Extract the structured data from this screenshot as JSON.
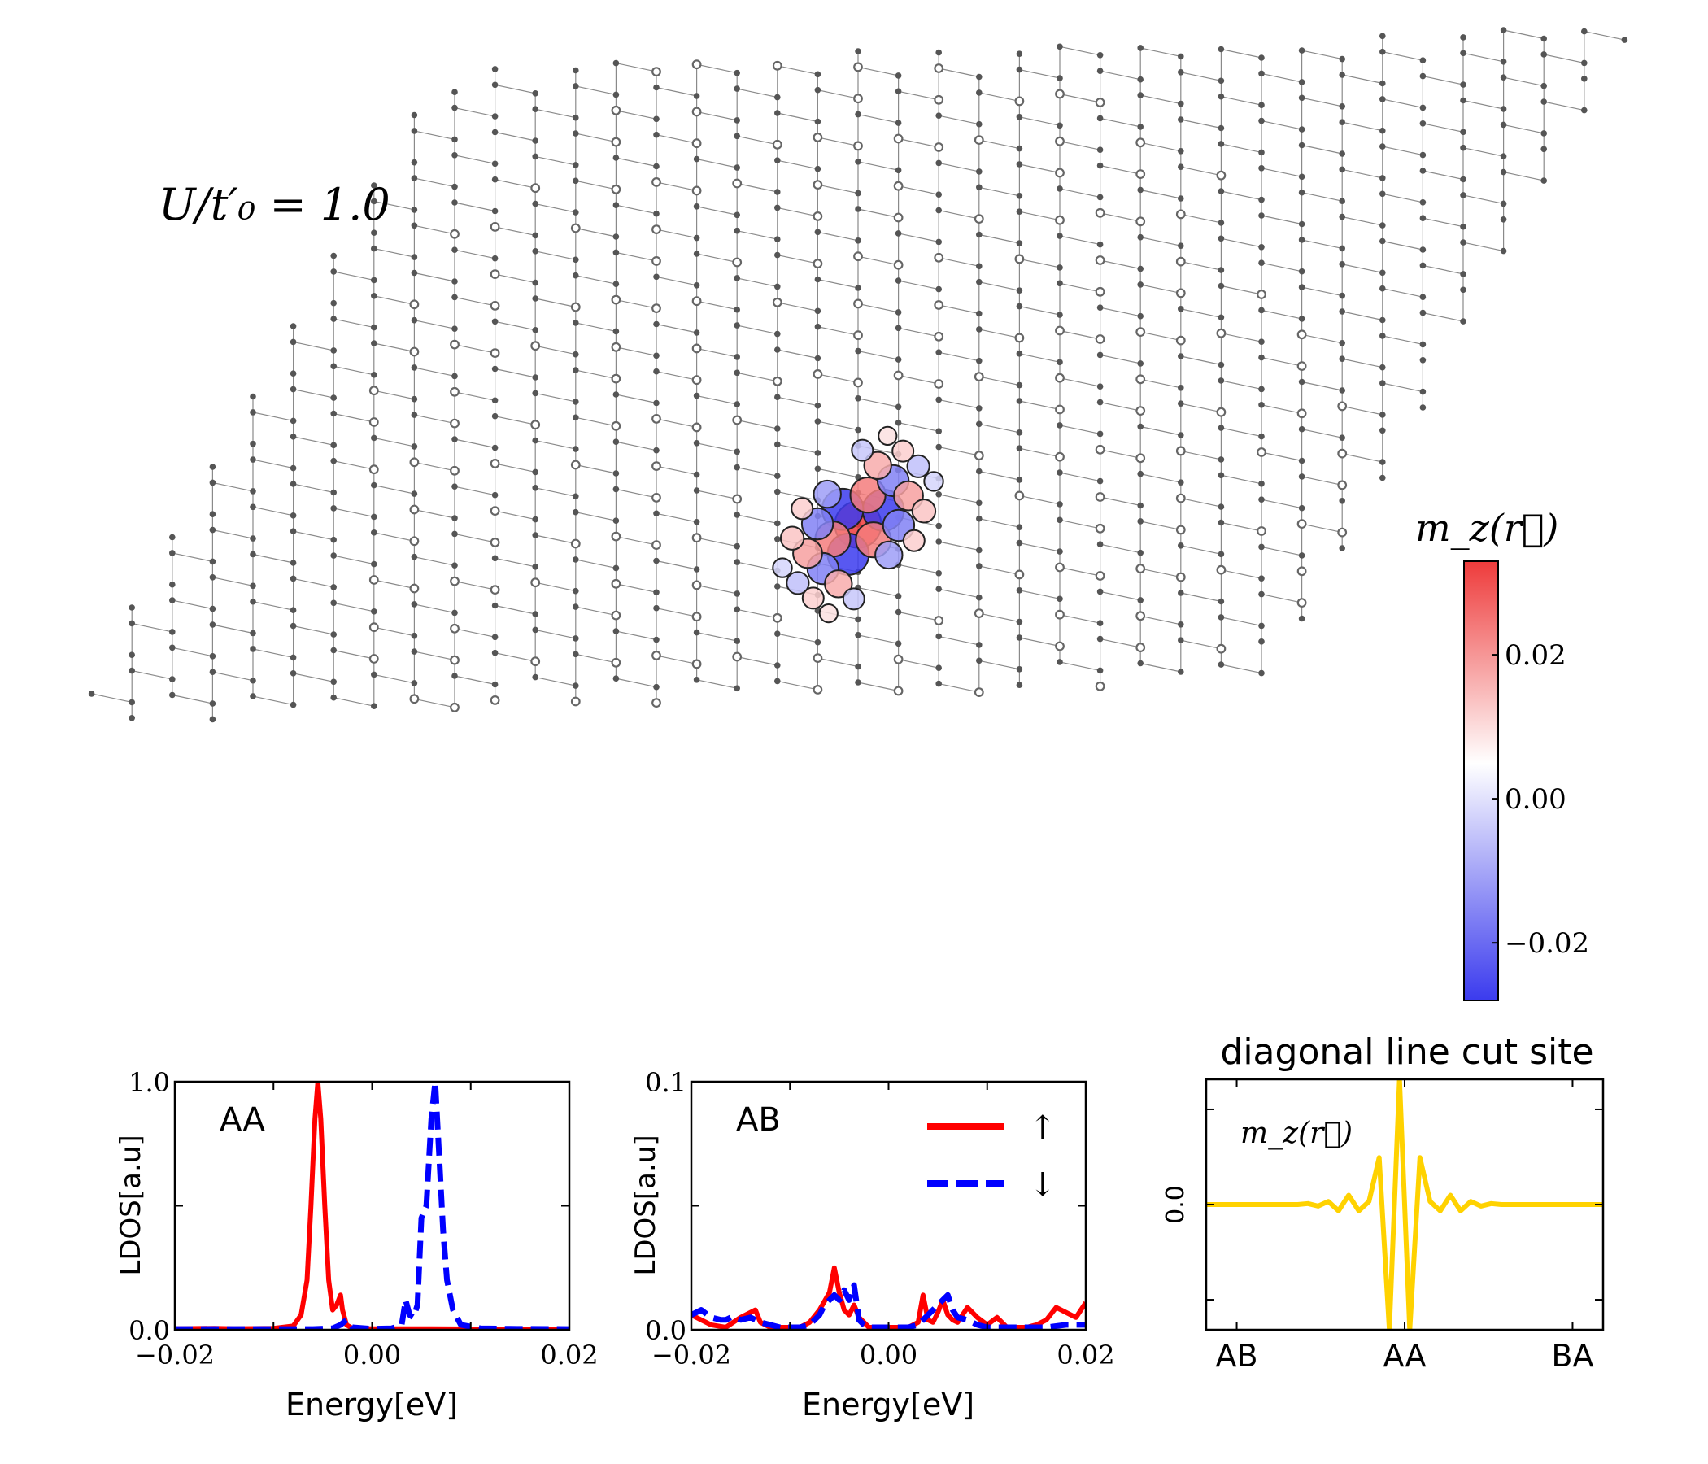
{
  "figure": {
    "param_label": "U/t′₀ = 1.0",
    "colormap": {
      "title": "m_z(r⃗)",
      "ticks": [
        "0.02",
        "0.00",
        "−0.02"
      ],
      "tick_values": [
        0.02,
        0.0,
        -0.02
      ],
      "vmin": -0.028,
      "vmax": 0.033,
      "color_pos": "#ee3b3b",
      "color_neg": "#3b3bee"
    },
    "lattice": {
      "bond_color": "#8a8a8a",
      "site_color": "#555555",
      "magnetic_sites": [
        {
          "i": 0,
          "j": 0,
          "m": 0.033
        },
        {
          "i": 1,
          "j": 0,
          "m": -0.028
        },
        {
          "i": -1,
          "j": 1,
          "m": -0.028
        },
        {
          "i": 0,
          "j": -1,
          "m": -0.028
        },
        {
          "i": -1,
          "j": 0,
          "m": 0.022
        },
        {
          "i": 1,
          "j": -1,
          "m": 0.022
        },
        {
          "i": 0,
          "j": 1,
          "m": 0.022
        },
        {
          "i": 2,
          "j": -1,
          "m": -0.018
        },
        {
          "i": -2,
          "j": 1,
          "m": -0.018
        },
        {
          "i": 1,
          "j": 1,
          "m": -0.018
        },
        {
          "i": -1,
          "j": -1,
          "m": -0.018
        },
        {
          "i": 2,
          "j": 0,
          "m": 0.016
        },
        {
          "i": -2,
          "j": 0,
          "m": 0.016
        },
        {
          "i": 0,
          "j": 2,
          "m": 0.014
        },
        {
          "i": 0,
          "j": -2,
          "m": 0.014
        },
        {
          "i": 2,
          "j": -2,
          "m": -0.014
        },
        {
          "i": -2,
          "j": 2,
          "m": -0.014
        },
        {
          "i": 3,
          "j": -1,
          "m": 0.01
        },
        {
          "i": -3,
          "j": 1,
          "m": 0.01
        },
        {
          "i": 1,
          "j": 2,
          "m": 0.008
        },
        {
          "i": -1,
          "j": -2,
          "m": 0.008
        },
        {
          "i": 2,
          "j": 1,
          "m": -0.009
        },
        {
          "i": -2,
          "j": -1,
          "m": -0.009
        },
        {
          "i": 3,
          "j": -2,
          "m": 0.008
        },
        {
          "i": -3,
          "j": 2,
          "m": 0.008
        },
        {
          "i": 1,
          "j": -3,
          "m": -0.008
        },
        {
          "i": -1,
          "j": 3,
          "m": -0.008
        },
        {
          "i": 3,
          "j": 0,
          "m": -0.006
        },
        {
          "i": -3,
          "j": 0,
          "m": -0.006
        },
        {
          "i": 0,
          "j": 3,
          "m": 0.005
        },
        {
          "i": 0,
          "j": -3,
          "m": 0.005
        }
      ]
    }
  },
  "chart_data": [
    {
      "type": "line",
      "panel": "AA",
      "annotation": "AA",
      "xlabel": "Energy[eV]",
      "ylabel": "LDOS[a.u]",
      "xlim": [
        -0.02,
        0.02
      ],
      "ylim": [
        0.0,
        1.0
      ],
      "xticks": [
        -0.02,
        0.0,
        0.02
      ],
      "xtick_labels": [
        "−0.02",
        "0.00",
        "0.02"
      ],
      "yticks": [
        0.0,
        1.0
      ],
      "ytick_labels": [
        "0.0",
        "1.0"
      ],
      "series": [
        {
          "name": "↑",
          "color": "#ff0000",
          "dash": "solid",
          "x": [
            -0.02,
            -0.016,
            -0.014,
            -0.012,
            -0.01,
            -0.008,
            -0.0072,
            -0.0066,
            -0.0062,
            -0.0058,
            -0.0055,
            -0.0052,
            -0.0048,
            -0.0044,
            -0.004,
            -0.0036,
            -0.0032,
            -0.003,
            -0.0026,
            -0.002,
            0.0,
            0.006,
            0.012,
            0.02
          ],
          "y": [
            0.004,
            0.006,
            0.004,
            0.005,
            0.006,
            0.015,
            0.06,
            0.2,
            0.5,
            0.85,
            1.0,
            0.85,
            0.5,
            0.2,
            0.08,
            0.1,
            0.14,
            0.08,
            0.02,
            0.006,
            0.004,
            0.004,
            0.003,
            0.003
          ]
        },
        {
          "name": "↓",
          "color": "#0000ff",
          "dash": "dashed",
          "x": [
            -0.02,
            -0.006,
            -0.004,
            -0.0032,
            -0.0026,
            -0.002,
            0.0,
            0.002,
            0.003,
            0.0034,
            0.0038,
            0.0042,
            0.0046,
            0.005,
            0.0055,
            0.006,
            0.0064,
            0.0068,
            0.0072,
            0.0076,
            0.0082,
            0.009,
            0.011,
            0.014,
            0.02
          ],
          "y": [
            0.003,
            0.003,
            0.006,
            0.02,
            0.04,
            0.01,
            0.004,
            0.006,
            0.02,
            0.12,
            0.06,
            0.05,
            0.1,
            0.45,
            0.5,
            0.85,
            1.0,
            0.7,
            0.4,
            0.2,
            0.08,
            0.02,
            0.006,
            0.004,
            0.003
          ]
        }
      ]
    },
    {
      "type": "line",
      "panel": "AB",
      "annotation": "AB",
      "xlabel": "Energy[eV]",
      "ylabel": "LDOS[a.u]",
      "xlim": [
        -0.02,
        0.02
      ],
      "ylim": [
        0.0,
        0.1
      ],
      "xticks": [
        -0.02,
        0.0,
        0.02
      ],
      "xtick_labels": [
        "−0.02",
        "0.00",
        "0.02"
      ],
      "yticks": [
        0.0,
        0.1
      ],
      "ytick_labels": [
        "0.0",
        "0.1"
      ],
      "legend": {
        "position": "top-right",
        "entries": [
          "↑",
          "↓"
        ]
      },
      "series": [
        {
          "name": "↑",
          "color": "#ff0000",
          "dash": "solid",
          "x": [
            -0.02,
            -0.019,
            -0.018,
            -0.0165,
            -0.015,
            -0.0135,
            -0.013,
            -0.012,
            -0.0105,
            -0.009,
            -0.008,
            -0.007,
            -0.006,
            -0.0055,
            -0.005,
            -0.0045,
            -0.004,
            -0.0035,
            -0.003,
            -0.0025,
            -0.002,
            0.0,
            0.002,
            0.003,
            0.0035,
            0.004,
            0.0045,
            0.005,
            0.0055,
            0.006,
            0.0065,
            0.007,
            0.008,
            0.009,
            0.01,
            0.011,
            0.012,
            0.014,
            0.015,
            0.016,
            0.017,
            0.018,
            0.019,
            0.02
          ],
          "y": [
            0.006,
            0.004,
            0.002,
            0.001,
            0.005,
            0.008,
            0.003,
            0.001,
            0.001,
            0.001,
            0.003,
            0.008,
            0.015,
            0.025,
            0.015,
            0.008,
            0.006,
            0.01,
            0.005,
            0.003,
            0.001,
            0.001,
            0.001,
            0.003,
            0.014,
            0.004,
            0.003,
            0.007,
            0.012,
            0.006,
            0.004,
            0.003,
            0.009,
            0.005,
            0.002,
            0.005,
            0.001,
            0.001,
            0.002,
            0.004,
            0.009,
            0.007,
            0.005,
            0.011
          ]
        },
        {
          "name": "↓",
          "color": "#0000ff",
          "dash": "dashed",
          "x": [
            -0.02,
            -0.019,
            -0.018,
            -0.017,
            -0.0165,
            -0.016,
            -0.0155,
            -0.015,
            -0.014,
            -0.013,
            -0.012,
            -0.011,
            -0.01,
            -0.009,
            -0.008,
            -0.007,
            -0.0065,
            -0.006,
            -0.0055,
            -0.005,
            -0.0045,
            -0.004,
            -0.0035,
            -0.003,
            -0.0025,
            -0.002,
            0.0,
            0.002,
            0.003,
            0.004,
            0.0045,
            0.005,
            0.0055,
            0.006,
            0.0065,
            0.007,
            0.008,
            0.009,
            0.01,
            0.012,
            0.014,
            0.016,
            0.018,
            0.02
          ],
          "y": [
            0.006,
            0.008,
            0.005,
            0.004,
            0.004,
            0.005,
            0.005,
            0.004,
            0.005,
            0.003,
            0.002,
            0.001,
            0.001,
            0.001,
            0.002,
            0.006,
            0.01,
            0.012,
            0.014,
            0.012,
            0.016,
            0.012,
            0.018,
            0.004,
            0.002,
            0.001,
            0.001,
            0.001,
            0.002,
            0.006,
            0.008,
            0.01,
            0.012,
            0.014,
            0.008,
            0.005,
            0.004,
            0.002,
            0.001,
            0.001,
            0.001,
            0.001,
            0.002,
            0.002
          ]
        }
      ]
    },
    {
      "type": "line",
      "panel": "diagonal line cut",
      "title": "diagonal line cut site",
      "annotation": "m_z(r⃗)",
      "ylabel": "0.0",
      "xtick_labels": [
        "AB",
        "AA",
        "BA"
      ],
      "xtick_positions": [
        3,
        19.5,
        36
      ],
      "xlim": [
        0,
        39
      ],
      "ylim": [
        -0.04,
        0.04
      ],
      "series": [
        {
          "name": "m_z",
          "color": "#ffd200",
          "dash": "solid",
          "x": [
            0,
            1,
            2,
            3,
            4,
            5,
            6,
            7,
            8,
            9,
            10,
            11,
            12,
            13,
            14,
            15,
            16,
            17,
            18,
            19,
            20,
            21,
            22,
            23,
            24,
            25,
            26,
            27,
            28,
            29,
            30,
            31,
            32,
            33,
            34,
            35,
            36,
            37,
            38,
            39
          ],
          "y": [
            0.0,
            0.0,
            0.0,
            0.0,
            0.0,
            0.0,
            0.0,
            0.0,
            0.0,
            0.0,
            0.0003,
            -0.0005,
            0.001,
            -0.002,
            0.003,
            -0.002,
            0.001,
            0.015,
            -0.04,
            0.04,
            -0.04,
            0.015,
            0.001,
            -0.002,
            0.003,
            -0.002,
            0.001,
            -0.0005,
            0.0003,
            0.0,
            0.0,
            0.0,
            0.0,
            0.0,
            0.0,
            0.0,
            0.0,
            0.0,
            0.0,
            0.0
          ]
        }
      ]
    }
  ]
}
